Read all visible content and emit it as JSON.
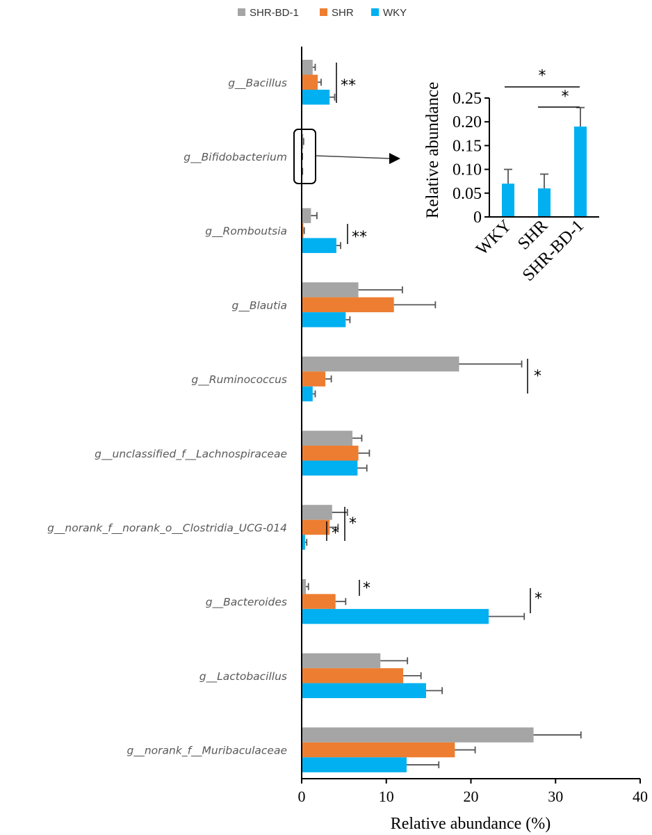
{
  "chart_data": [
    {
      "type": "bar",
      "orientation": "horizontal",
      "categories": [
        "g__Bacillus",
        "g__Bifidobacterium",
        "g__Romboutsia",
        "g__Blautia",
        "g__Ruminococcus",
        "g__unclassified_f__Lachnospiraceae",
        "g__norank_f__norank_o__Clostridia_UCG-014",
        "g__Bacteroides",
        "g__Lactobacillus",
        "g__norank_f__Muribaculaceae"
      ],
      "series": [
        {
          "name": "SHR-BD-1",
          "color": "#a5a5a5",
          "values": [
            1.3,
            0.19,
            1.1,
            6.7,
            18.6,
            6.0,
            3.6,
            0.5,
            9.3,
            27.4
          ],
          "errors": [
            0.3,
            0.04,
            0.7,
            5.2,
            7.4,
            1.1,
            1.8,
            0.3,
            3.2,
            5.6
          ]
        },
        {
          "name": "SHR",
          "color": "#ed7d31",
          "values": [
            1.9,
            0.06,
            0.2,
            10.9,
            2.8,
            6.7,
            3.3,
            4.0,
            12.0,
            18.1
          ],
          "errors": [
            0.4,
            0.03,
            0.1,
            4.9,
            0.7,
            1.3,
            1.0,
            1.2,
            2.1,
            2.4
          ]
        },
        {
          "name": "WKY",
          "color": "#00b0f0",
          "values": [
            3.3,
            0.07,
            4.1,
            5.2,
            1.3,
            6.6,
            0.4,
            22.1,
            14.7,
            12.4
          ],
          "errors": [
            0.6,
            0.03,
            0.5,
            0.5,
            0.3,
            1.1,
            0.2,
            4.2,
            1.9,
            3.8
          ]
        }
      ],
      "xlim": [
        0,
        40
      ],
      "xticks": [
        "0",
        "10",
        "20",
        "30",
        "40"
      ],
      "xlabel": "Relative abundance (%)",
      "legend_position": "top",
      "significance": [
        {
          "category": "g__Bacillus",
          "label": "**"
        },
        {
          "category": "g__Romboutsia",
          "label": "**"
        },
        {
          "category": "g__Ruminococcus",
          "label": "*"
        },
        {
          "category": "g__norank_f__norank_o__Clostridia_UCG-014",
          "label": "*"
        },
        {
          "category": "g__norank_f__norank_o__Clostridia_UCG-014",
          "label": "*"
        },
        {
          "category": "g__Bacteroides",
          "label": "*"
        },
        {
          "category": "g__Bacteroides",
          "label": "*"
        }
      ]
    },
    {
      "type": "bar",
      "inset_of": "g__Bifidobacterium",
      "categories": [
        "WKY",
        "SHR",
        "SHR-BD-1"
      ],
      "values": [
        0.07,
        0.06,
        0.19
      ],
      "errors": [
        0.03,
        0.03,
        0.04
      ],
      "color": "#00b0f0",
      "ylabel": "Relative abundance",
      "ylim": [
        0,
        0.25
      ],
      "yticks": [
        "0",
        "0.05",
        "0.10",
        "0.15",
        "0.20",
        "0.25"
      ],
      "significance": [
        {
          "pair": [
            "WKY",
            "SHR-BD-1"
          ],
          "label": "*"
        },
        {
          "pair": [
            "SHR",
            "SHR-BD-1"
          ],
          "label": "*"
        }
      ]
    }
  ]
}
